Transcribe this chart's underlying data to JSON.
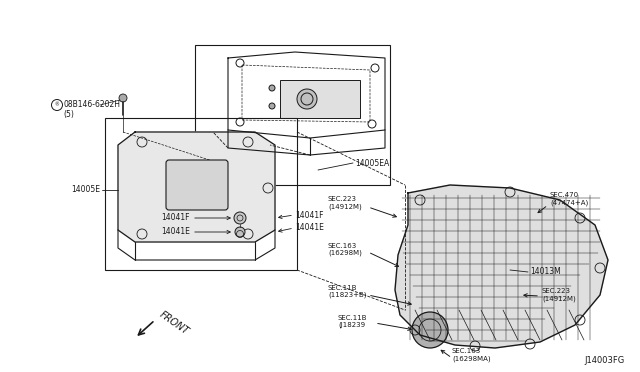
{
  "bg_color": "#ffffff",
  "line_color": "#1a1a1a",
  "figure_code": "J14003FG",
  "parts": {
    "bolt": "08B146-6202H\n(5)",
    "part1": "14005EA",
    "part2": "14005E",
    "part3_top": "14041F",
    "part4_top": "14041E",
    "part3_bot": "14041F",
    "part4_bot": "14041E",
    "part5": "14013M",
    "sec1": "SEC.223\n(14912M)",
    "sec2": "SEC.470\n(47474+A)",
    "sec3": "SEC.163\n(16298M)",
    "sec4": "SEC.11B\n(11823+B)",
    "sec5": "SEC.11B\n(J18239",
    "sec6": "SEC.163\n(16298MA)",
    "sec7": "SEC.223\n(14912M)",
    "front_label": "FRONT"
  },
  "font_size_small": 5.5,
  "font_size_large": 7
}
